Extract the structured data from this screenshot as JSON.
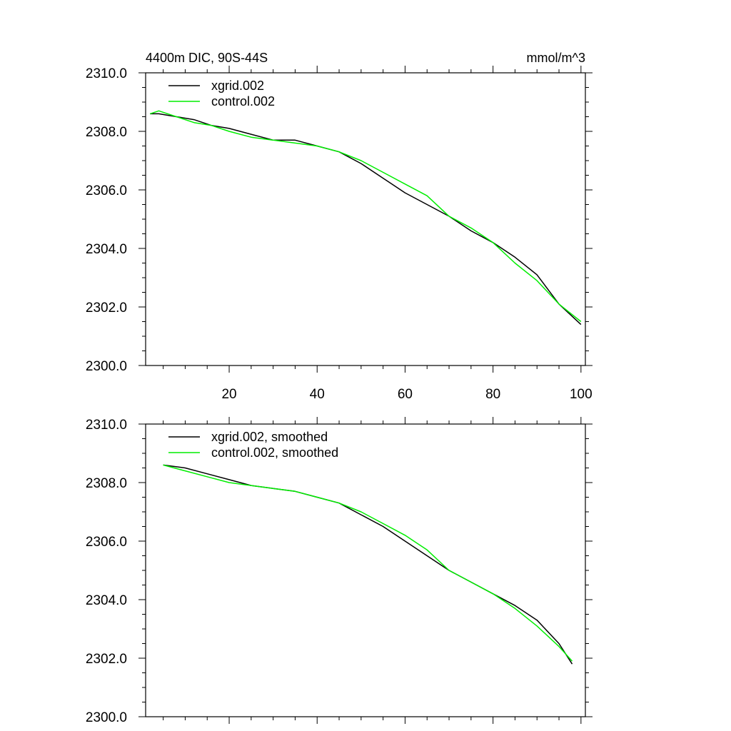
{
  "chart_data": [
    {
      "type": "line",
      "title": "4400m DIC, 90S-44S",
      "units": "mmol/m^3",
      "xlim": [
        1,
        101
      ],
      "ylim": [
        2300,
        2310
      ],
      "xticks": [
        20,
        40,
        60,
        80,
        100
      ],
      "xtick_labels": [
        "20",
        "40",
        "60",
        "80",
        "100"
      ],
      "yticks": [
        2300,
        2302,
        2304,
        2306,
        2308,
        2310
      ],
      "ytick_labels": [
        "2300.0",
        "2302.0",
        "2304.0",
        "2306.0",
        "2308.0",
        "2310.0"
      ],
      "legend_position": "top-left",
      "series": [
        {
          "name": "xgrid.002",
          "color": "#000000",
          "x": [
            2,
            4,
            8,
            12,
            16,
            20,
            25,
            30,
            35,
            40,
            45,
            50,
            55,
            60,
            65,
            70,
            75,
            80,
            85,
            90,
            95,
            100
          ],
          "y": [
            2308.6,
            2308.6,
            2308.5,
            2308.4,
            2308.2,
            2308.1,
            2307.9,
            2307.7,
            2307.7,
            2307.5,
            2307.3,
            2306.9,
            2306.4,
            2305.9,
            2305.5,
            2305.1,
            2304.6,
            2304.2,
            2303.7,
            2303.1,
            2302.1,
            2301.4
          ]
        },
        {
          "name": "control.002",
          "color": "#00ee00",
          "x": [
            2,
            4,
            8,
            12,
            16,
            20,
            25,
            30,
            35,
            40,
            45,
            50,
            55,
            60,
            65,
            70,
            75,
            80,
            85,
            90,
            95,
            100
          ],
          "y": [
            2308.6,
            2308.7,
            2308.5,
            2308.3,
            2308.2,
            2308.0,
            2307.8,
            2307.7,
            2307.6,
            2307.5,
            2307.3,
            2307.0,
            2306.6,
            2306.2,
            2305.8,
            2305.1,
            2304.7,
            2304.2,
            2303.5,
            2302.9,
            2302.1,
            2301.5
          ]
        }
      ]
    },
    {
      "type": "line",
      "xlim": [
        1,
        101
      ],
      "ylim": [
        2300,
        2310
      ],
      "xticks": [
        20,
        40,
        60,
        80,
        100
      ],
      "yticks": [
        2300,
        2302,
        2304,
        2306,
        2308,
        2310
      ],
      "ytick_labels": [
        "2300.0",
        "2302.0",
        "2304.0",
        "2306.0",
        "2308.0",
        "2310.0"
      ],
      "legend_position": "top-left",
      "series": [
        {
          "name": "xgrid.002, smoothed",
          "color": "#000000",
          "x": [
            5,
            10,
            15,
            20,
            25,
            30,
            35,
            40,
            45,
            50,
            55,
            60,
            65,
            70,
            75,
            80,
            85,
            90,
            95,
            98
          ],
          "y": [
            2308.6,
            2308.5,
            2308.3,
            2308.1,
            2307.9,
            2307.8,
            2307.7,
            2307.5,
            2307.3,
            2306.9,
            2306.5,
            2306.0,
            2305.5,
            2305.0,
            2304.6,
            2304.2,
            2303.8,
            2303.3,
            2302.5,
            2301.8
          ]
        },
        {
          "name": "control.002, smoothed",
          "color": "#00ee00",
          "x": [
            5,
            10,
            15,
            20,
            25,
            30,
            35,
            40,
            45,
            50,
            55,
            60,
            65,
            70,
            75,
            80,
            85,
            90,
            95,
            98
          ],
          "y": [
            2308.6,
            2308.4,
            2308.2,
            2308.0,
            2307.9,
            2307.8,
            2307.7,
            2307.5,
            2307.3,
            2307.0,
            2306.6,
            2306.2,
            2305.7,
            2305.0,
            2304.6,
            2304.2,
            2303.7,
            2303.1,
            2302.4,
            2301.9
          ]
        }
      ]
    }
  ]
}
